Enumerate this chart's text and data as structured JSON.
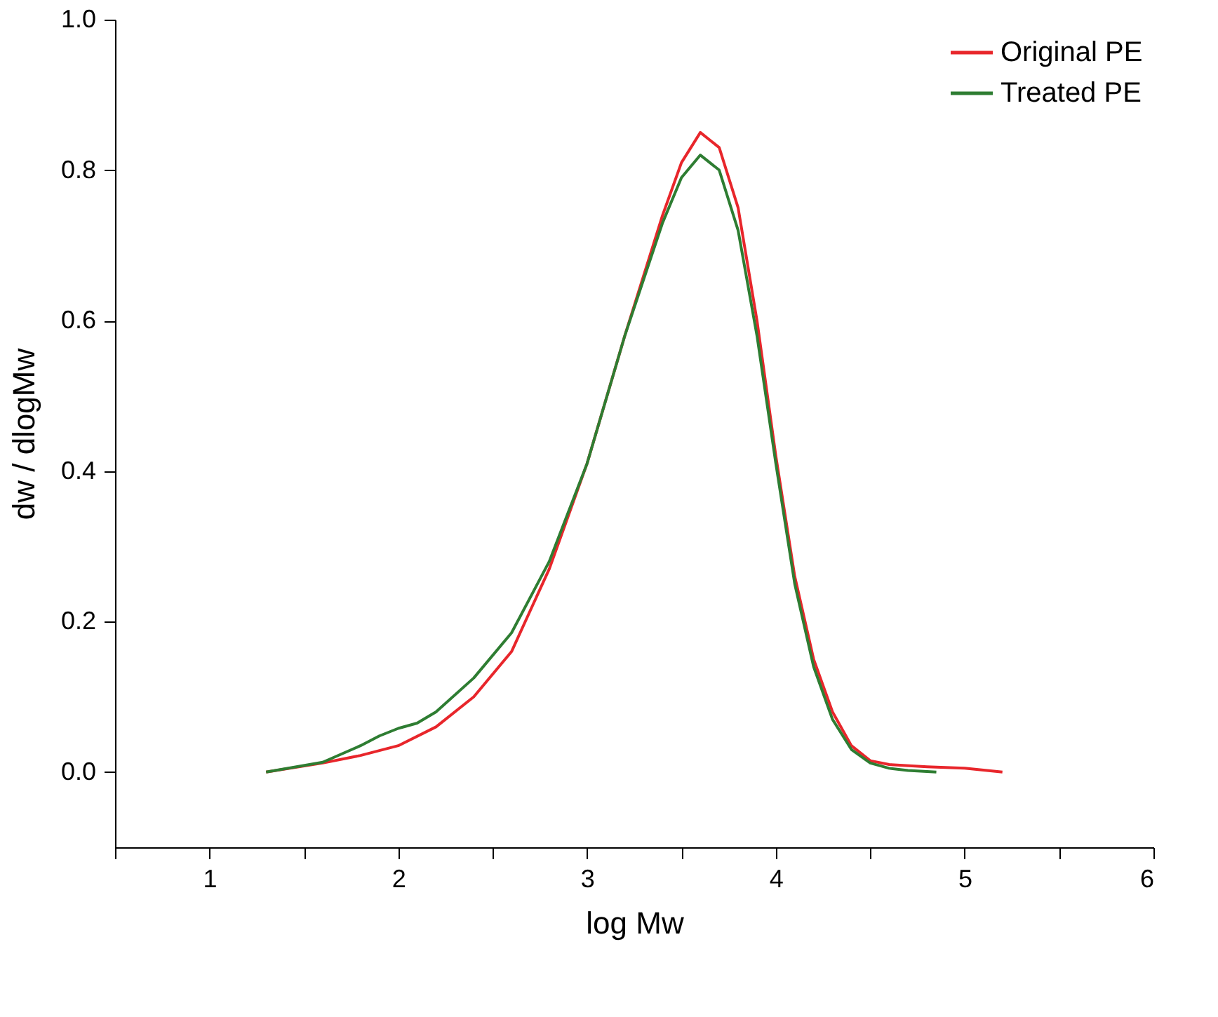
{
  "chart_data": {
    "type": "line",
    "xlabel": "log Mw",
    "ylabel": "dw / dlogMw",
    "xlim": [
      0.5,
      6
    ],
    "xticks": [
      {
        "value": 0.5,
        "label": null
      },
      1,
      {
        "value": 1.5,
        "label": null
      },
      2,
      {
        "value": 2.5,
        "label": null
      },
      3,
      {
        "value": 3.5,
        "label": null
      },
      4,
      {
        "value": 4.5,
        "label": null
      },
      5,
      {
        "value": 5.5,
        "label": null
      },
      6
    ],
    "ylim": [
      -0.1,
      1.0
    ],
    "yticks": [
      {
        "value": 0,
        "label": "0.0"
      },
      0.2,
      0.4,
      0.6,
      0.8,
      {
        "value": 1,
        "label": "1.0"
      }
    ],
    "grid": false,
    "legend": "top right",
    "line_style": "solid",
    "marker": "none",
    "series": [
      {
        "name": "Original PE",
        "color": "#e8262b",
        "x": [
          1.3,
          1.6,
          1.8,
          2.0,
          2.2,
          2.4,
          2.6,
          2.8,
          3.0,
          3.2,
          3.4,
          3.5,
          3.6,
          3.7,
          3.8,
          3.9,
          4.0,
          4.1,
          4.2,
          4.3,
          4.4,
          4.5,
          4.6,
          4.8,
          5.0,
          5.2
        ],
        "values": [
          0.0,
          0.012,
          0.022,
          0.035,
          0.06,
          0.1,
          0.16,
          0.27,
          0.41,
          0.58,
          0.74,
          0.81,
          0.85,
          0.83,
          0.75,
          0.6,
          0.42,
          0.26,
          0.15,
          0.08,
          0.035,
          0.015,
          0.01,
          0.007,
          0.005,
          0.0
        ]
      },
      {
        "name": "Treated PE",
        "color": "#2e7d32",
        "x": [
          1.3,
          1.6,
          1.8,
          1.9,
          2.0,
          2.1,
          2.2,
          2.4,
          2.6,
          2.8,
          3.0,
          3.2,
          3.4,
          3.5,
          3.6,
          3.7,
          3.8,
          3.9,
          4.0,
          4.1,
          4.2,
          4.3,
          4.4,
          4.5,
          4.6,
          4.7,
          4.85
        ],
        "values": [
          0.0,
          0.013,
          0.035,
          0.048,
          0.058,
          0.065,
          0.08,
          0.125,
          0.185,
          0.28,
          0.41,
          0.58,
          0.73,
          0.79,
          0.82,
          0.8,
          0.72,
          0.58,
          0.41,
          0.25,
          0.14,
          0.07,
          0.03,
          0.012,
          0.005,
          0.002,
          0.0
        ]
      }
    ]
  }
}
